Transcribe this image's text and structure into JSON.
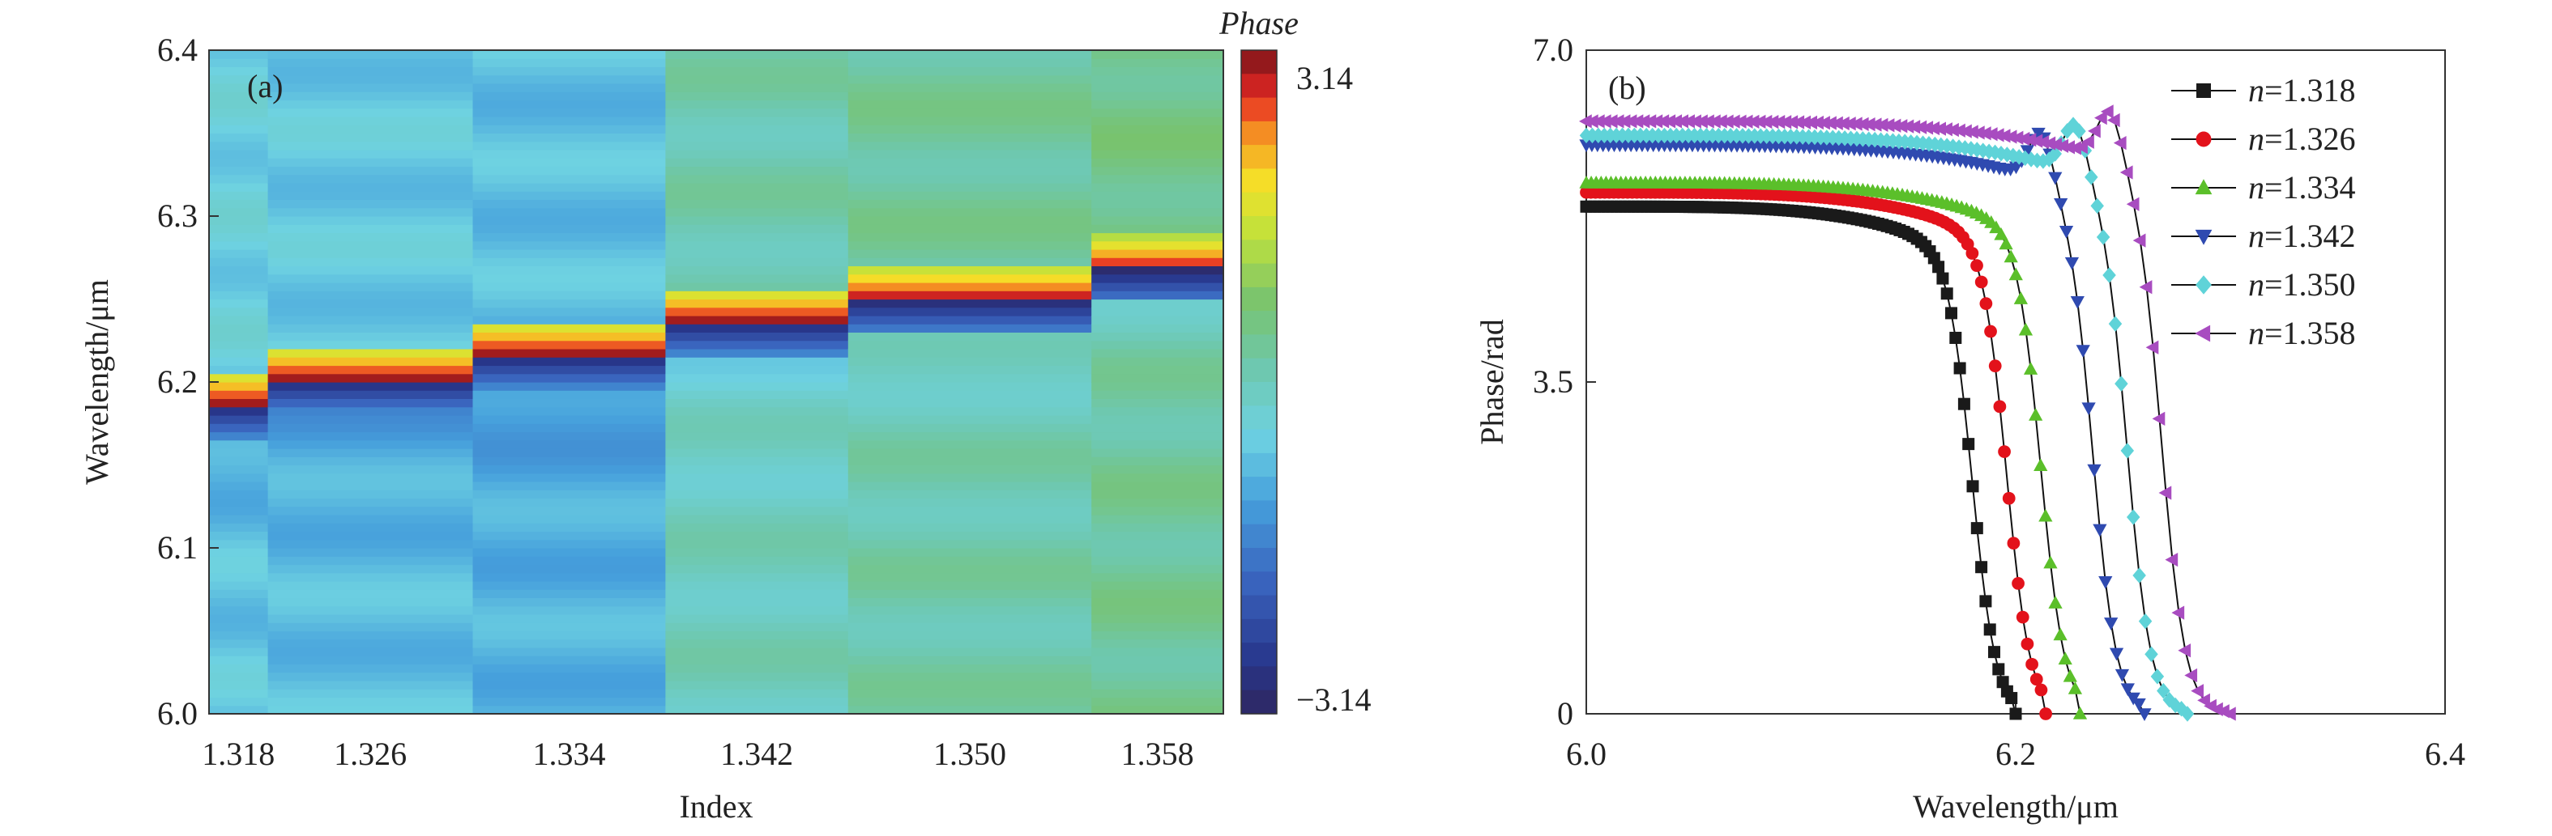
{
  "chart_data": [
    {
      "panel_label": "(a)",
      "type": "heatmap",
      "title": "",
      "xlabel": "Index",
      "ylabel": "Wavelength/μm",
      "ylim": [
        6.0,
        6.4
      ],
      "yticks": [
        "6.0",
        "6.1",
        "6.2",
        "6.3",
        "6.4"
      ],
      "x_categories": [
        "1.318",
        "1.326",
        "1.334",
        "1.342",
        "1.350",
        "1.358"
      ],
      "resonance_wavelengths": [
        6.187,
        6.202,
        6.217,
        6.237,
        6.25,
        6.268
      ],
      "colorbar": {
        "title": "Phase",
        "max_label": "3.14",
        "min_label": "−3.14",
        "range": [
          -3.14,
          3.14
        ]
      }
    },
    {
      "panel_label": "(b)",
      "type": "line",
      "title": "",
      "xlabel": "Wavelength/μm",
      "ylabel": "Phase/rad",
      "xlim": [
        6.0,
        6.4
      ],
      "ylim": [
        0,
        7.0
      ],
      "xticks": [
        "6.0",
        "6.2",
        "6.4"
      ],
      "yticks": [
        "0",
        "3.5",
        "7.0"
      ],
      "legend_position": "top-right",
      "series": [
        {
          "name": "n=1.318",
          "index_value": "1.318",
          "color": "#1a1a1a",
          "marker": "square",
          "start_phase": 5.35,
          "drop_center": 6.18,
          "end_wavelength": 6.2
        },
        {
          "name": "n=1.326",
          "index_value": "1.326",
          "color": "#e3121b",
          "marker": "circle",
          "start_phase": 5.5,
          "drop_center": 6.196,
          "end_wavelength": 6.214
        },
        {
          "name": "n=1.334",
          "index_value": "1.334",
          "color": "#5bbf2a",
          "marker": "triangle-up",
          "start_phase": 5.6,
          "drop_center": 6.212,
          "end_wavelength": 6.23
        },
        {
          "name": "n=1.342",
          "index_value": "1.342",
          "color": "#2f4ab0",
          "marker": "triangle-down",
          "start_phase": 6.0,
          "drop_center": 6.236,
          "end_wavelength": 6.26
        },
        {
          "name": "n=1.350",
          "index_value": "1.350",
          "color": "#5fd3d8",
          "marker": "diamond",
          "start_phase": 6.1,
          "drop_center": 6.252,
          "end_wavelength": 6.28
        },
        {
          "name": "n=1.358",
          "index_value": "1.358",
          "color": "#a84cc0",
          "marker": "triangle-left",
          "start_phase": 6.25,
          "drop_center": 6.268,
          "end_wavelength": 6.3
        }
      ]
    }
  ]
}
